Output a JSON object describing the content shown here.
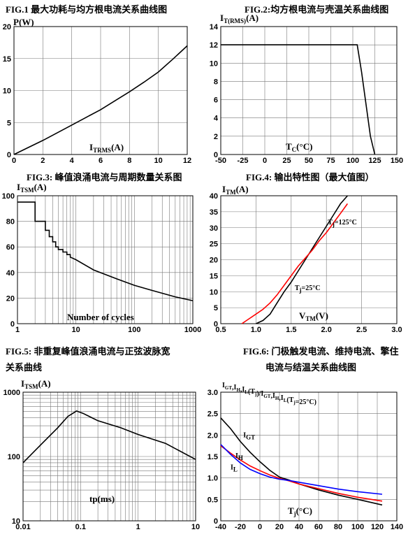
{
  "chart_data": [
    {
      "id": "fig1",
      "type": "line",
      "title": "FIG.1  最大功耗与均方根电流关系曲线图",
      "ylabel": {
        "main": "P(W)",
        "sub": ""
      },
      "xlabel": {
        "main": "I",
        "sub": "TRMS",
        "tail": "(A)"
      },
      "xlim": [
        0,
        12
      ],
      "ylim": [
        0,
        20
      ],
      "xticks": [
        0,
        2,
        4,
        6,
        8,
        10,
        12
      ],
      "yticks": [
        0,
        5,
        10,
        15,
        20
      ],
      "grid": true,
      "series": [
        {
          "color": "#000000",
          "x": [
            0,
            1,
            2,
            3,
            4,
            5,
            6,
            7,
            8,
            9,
            10,
            11,
            12
          ],
          "y": [
            0,
            1.1,
            2.2,
            3.4,
            4.6,
            5.8,
            7.0,
            8.4,
            9.8,
            11.3,
            12.9,
            14.9,
            17.0
          ]
        }
      ]
    },
    {
      "id": "fig2",
      "type": "line",
      "title": "FIG.2:均方根电流与壳温关系曲线图",
      "ylabel": {
        "main": "I",
        "sub": "T(RMS)",
        "tail": "(A)"
      },
      "xlabel": {
        "main": "T",
        "sub": "C",
        "tail": "(°C)"
      },
      "xlim": [
        -50,
        150
      ],
      "ylim": [
        0,
        14
      ],
      "xticks": [
        -50,
        -25,
        0,
        25,
        50,
        75,
        100,
        125,
        150
      ],
      "yticks": [
        0,
        2,
        4,
        6,
        8,
        10,
        12,
        14
      ],
      "grid": true,
      "series": [
        {
          "color": "#000000",
          "x": [
            -50,
            105,
            110,
            115,
            120,
            125
          ],
          "y": [
            12,
            12,
            9,
            5.5,
            2,
            0
          ]
        }
      ]
    },
    {
      "id": "fig3",
      "type": "line",
      "title": "FIG.3:  峰值浪涌电流与周期数量关系图",
      "ylabel": {
        "main": "I",
        "sub": "TSM",
        "tail": "(A)"
      },
      "xlabel": {
        "main": "Number of cycles",
        "sub": "",
        "tail": ""
      },
      "xscale": "log",
      "xlim": [
        1,
        1000
      ],
      "ylim": [
        0,
        100
      ],
      "xticks": [
        1,
        10,
        100,
        1000
      ],
      "yticks": [
        0,
        20,
        40,
        60,
        80,
        100
      ],
      "grid": true,
      "series": [
        {
          "color": "#000000",
          "x": [
            1,
            2,
            2,
            3,
            3,
            3.5,
            3.5,
            4,
            4,
            4.5,
            4.5,
            5,
            5,
            6,
            6,
            7,
            7,
            8,
            8,
            9,
            10,
            20,
            50,
            100,
            200,
            500,
            1000
          ],
          "y": [
            95,
            95,
            80,
            80,
            73,
            73,
            68,
            68,
            64,
            64,
            60,
            60,
            58,
            58,
            56,
            56,
            54,
            54,
            52,
            51,
            50,
            42,
            35,
            30,
            26,
            21,
            18
          ]
        }
      ]
    },
    {
      "id": "fig4",
      "type": "line",
      "title": "FIG.4:  输出特性图（最大值图）",
      "ylabel": {
        "main": "I",
        "sub": "TM",
        "tail": "(A)"
      },
      "xlabel": {
        "main": "V",
        "sub": "TM",
        "tail": "(V)"
      },
      "xlim": [
        0.5,
        3.0
      ],
      "ylim": [
        0,
        40
      ],
      "xticks": [
        0.5,
        1.0,
        1.5,
        2.0,
        2.5,
        3.0
      ],
      "yticks": [
        0,
        5,
        10,
        15,
        20,
        25,
        30,
        35,
        40
      ],
      "grid": true,
      "annotations": [
        {
          "main": "T",
          "sub": "j",
          "tail": "=125°C",
          "x": 2.02,
          "y": 31
        },
        {
          "main": "T",
          "sub": "j",
          "tail": "=25°C",
          "x": 1.55,
          "y": 10.5
        }
      ],
      "series": [
        {
          "color": "#000000",
          "x": [
            1.0,
            1.1,
            1.2,
            1.3,
            1.4,
            1.5,
            1.6,
            1.7,
            1.8,
            1.9,
            2.0,
            2.1,
            2.2,
            2.3
          ],
          "y": [
            0,
            1,
            3,
            6.5,
            10,
            13,
            16.5,
            20,
            23.5,
            27,
            30.5,
            34,
            37.5,
            40
          ]
        },
        {
          "color": "#ff0000",
          "x": [
            0.8,
            0.9,
            1.0,
            1.1,
            1.2,
            1.3,
            1.4,
            1.5,
            1.6,
            1.7,
            1.8,
            1.9,
            2.0,
            2.1,
            2.2,
            2.3
          ],
          "y": [
            0,
            1.5,
            3,
            4.5,
            6.5,
            9,
            12,
            15,
            18,
            20.5,
            23,
            26,
            28.5,
            31.5,
            34.5,
            37.5
          ]
        }
      ]
    },
    {
      "id": "fig5",
      "type": "line",
      "title": "FIG.5:  非重复峰值浪涌电流与正弦波脉宽",
      "title2": "关系曲线",
      "ylabel": {
        "main": "I",
        "sub": "TSM",
        "tail": "(A)"
      },
      "xlabel": {
        "main": "tp(ms)",
        "sub": "",
        "tail": ""
      },
      "xscale": "log",
      "yscale": "log",
      "xlim": [
        0.01,
        10
      ],
      "ylim": [
        10,
        1000
      ],
      "xticks": [
        0.01,
        0.1,
        1,
        10
      ],
      "yticks": [
        10,
        100,
        1000
      ],
      "grid": true,
      "series": [
        {
          "color": "#000000",
          "x": [
            0.01,
            0.02,
            0.04,
            0.06,
            0.085,
            0.11,
            0.2,
            0.5,
            1,
            3,
            10
          ],
          "y": [
            80,
            150,
            280,
            420,
            510,
            470,
            360,
            280,
            220,
            160,
            90
          ]
        }
      ]
    },
    {
      "id": "fig6",
      "type": "line",
      "title": "FIG.6:  门极触发电流、维持电流、擎住",
      "title2": "电流与结温关系曲线图",
      "ylabel": {
        "main": "I",
        "sub": "GT",
        "tail": ",I",
        "full": [
          [
            "I",
            "GT"
          ],
          [
            ",I",
            "H"
          ],
          [
            ",I",
            "L"
          ],
          [
            "(T",
            "j"
          ],
          [
            ")/I",
            "GT"
          ],
          [
            ",I",
            "H"
          ],
          [
            ",I",
            "L"
          ],
          [
            "(T",
            "j"
          ],
          [
            "=25°C)",
            ""
          ]
        ]
      },
      "xlabel": {
        "main": "T",
        "sub": "j",
        "tail": "(°C)"
      },
      "xlim": [
        -40,
        140
      ],
      "ylim": [
        0,
        3.0
      ],
      "xticks": [
        -40,
        -20,
        0,
        20,
        40,
        60,
        80,
        100,
        120,
        140
      ],
      "yticks": [
        0,
        0.5,
        1.0,
        1.5,
        2.0,
        2.5,
        3.0
      ],
      "grid": true,
      "annotations": [
        {
          "main": "I",
          "sub": "GT",
          "tail": "",
          "x": -17,
          "y": 1.95
        },
        {
          "main": "I",
          "sub": "H",
          "tail": "",
          "x": -25,
          "y": 1.47
        },
        {
          "main": "I",
          "sub": "L",
          "tail": "",
          "x": -30,
          "y": 1.2
        }
      ],
      "series": [
        {
          "name": "I_GT",
          "color": "#000000",
          "x": [
            -40,
            -30,
            -20,
            -10,
            0,
            10,
            20,
            30,
            40,
            60,
            80,
            100,
            125
          ],
          "y": [
            2.4,
            2.15,
            1.85,
            1.6,
            1.38,
            1.18,
            1.02,
            0.95,
            0.86,
            0.72,
            0.6,
            0.5,
            0.37
          ]
        },
        {
          "name": "I_H",
          "color": "#ff0000",
          "x": [
            -40,
            -30,
            -20,
            -10,
            0,
            10,
            20,
            30,
            40,
            60,
            80,
            100,
            125
          ],
          "y": [
            1.75,
            1.58,
            1.42,
            1.28,
            1.17,
            1.07,
            0.99,
            0.93,
            0.86,
            0.75,
            0.64,
            0.55,
            0.46
          ]
        },
        {
          "name": "I_L",
          "color": "#0000ff",
          "x": [
            -40,
            -30,
            -20,
            -10,
            0,
            10,
            20,
            30,
            40,
            60,
            80,
            100,
            125
          ],
          "y": [
            1.78,
            1.55,
            1.35,
            1.2,
            1.1,
            1.02,
            0.97,
            0.94,
            0.9,
            0.82,
            0.74,
            0.68,
            0.62
          ]
        }
      ]
    }
  ]
}
